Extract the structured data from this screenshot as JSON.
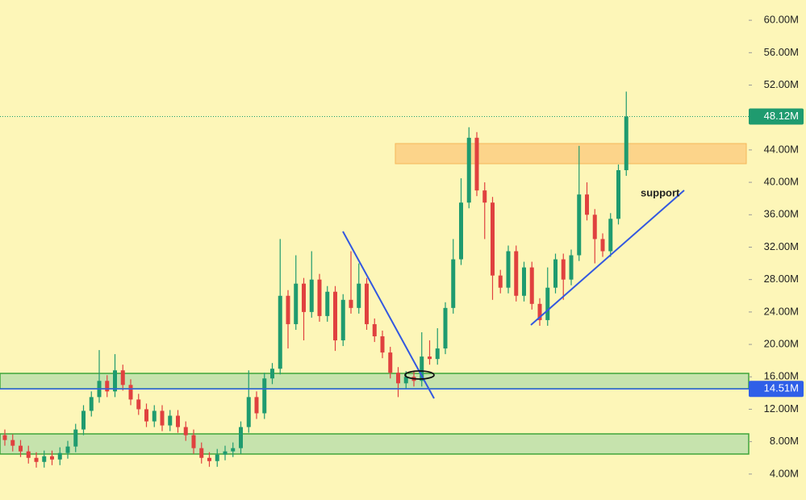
{
  "chart_data": {
    "type": "candlestick",
    "annotations": [
      "support"
    ],
    "ylim": [
      0.8,
      62.5
    ],
    "yticks": [
      {
        "value": 4,
        "label": "4.00M"
      },
      {
        "value": 8,
        "label": "8.00M"
      },
      {
        "value": 12,
        "label": "12.00M"
      },
      {
        "value": 16,
        "label": "16.00M"
      },
      {
        "value": 20,
        "label": "20.00M"
      },
      {
        "value": 24,
        "label": "24.00M"
      },
      {
        "value": 28,
        "label": "28.00M"
      },
      {
        "value": 32,
        "label": "32.00M"
      },
      {
        "value": 36,
        "label": "36.00M"
      },
      {
        "value": 40,
        "label": "40.00M"
      },
      {
        "value": 44,
        "label": "44.00M"
      },
      {
        "value": 48,
        "label": "48.00M"
      },
      {
        "value": 52,
        "label": "52.00M"
      },
      {
        "value": 56,
        "label": "56.00M"
      },
      {
        "value": 60,
        "label": "60.00M"
      }
    ],
    "last_price": {
      "value": 48.12,
      "label": "48.12M",
      "color": "#1f9b6f"
    },
    "level": {
      "value": 14.51,
      "label": "14.51M",
      "color": "#2f5fe8"
    },
    "up_color": "#1f9b6f",
    "down_color": "#e0413f",
    "open": [
      8.8,
      8.2,
      7.5,
      6.8,
      6.0,
      5.5,
      6.2,
      5.8,
      6.6,
      7.4,
      9.5,
      11.8,
      13.5,
      15.5,
      14.2,
      16.8,
      15.0,
      13.2,
      12.0,
      10.5,
      11.8,
      10.0,
      11.2,
      9.8,
      8.8,
      7.2,
      6.0,
      5.6,
      6.4,
      6.8,
      7.2,
      9.8,
      13.5,
      11.5,
      15.8,
      17.0,
      26.0,
      22.5,
      27.5,
      24.0,
      28.0,
      23.5,
      26.5,
      20.5,
      25.5,
      24.5,
      27.5,
      22.5,
      21.0,
      19.0,
      16.5,
      15.2,
      16.0,
      15.5,
      18.5,
      18.2,
      19.5,
      24.5,
      30.5,
      37.5,
      45.5,
      39.0,
      37.5,
      28.5,
      27.0,
      31.5,
      26.0,
      29.5,
      25.0,
      23.0,
      27.0,
      30.5,
      28.0,
      31.0,
      38.5,
      36.0,
      33.0,
      31.5,
      35.5,
      41.5
    ],
    "high": [
      9.5,
      8.9,
      8.2,
      7.5,
      6.7,
      6.9,
      6.9,
      7.3,
      8.1,
      10.2,
      12.5,
      14.2,
      19.3,
      16.2,
      18.8,
      17.5,
      15.7,
      13.9,
      12.7,
      12.5,
      12.5,
      11.9,
      11.9,
      10.5,
      9.5,
      7.9,
      6.7,
      7.1,
      7.5,
      7.9,
      10.5,
      16.8,
      14.2,
      16.5,
      17.7,
      33.0,
      26.7,
      31.0,
      28.2,
      31.5,
      28.7,
      27.2,
      27.2,
      26.2,
      31.5,
      30.0,
      28.2,
      23.2,
      21.7,
      19.7,
      17.2,
      16.7,
      16.7,
      21.5,
      20.5,
      22.0,
      25.2,
      33.0,
      40.5,
      46.8,
      46.2,
      40.0,
      38.2,
      29.2,
      32.2,
      32.2,
      30.2,
      30.2,
      25.7,
      29.5,
      31.2,
      31.2,
      31.7,
      44.5,
      40.0,
      36.7,
      33.7,
      36.2,
      42.2,
      51.2
    ],
    "low": [
      7.5,
      6.8,
      6.1,
      5.3,
      4.8,
      4.8,
      5.1,
      5.1,
      5.9,
      6.7,
      8.8,
      11.1,
      12.8,
      13.5,
      13.5,
      14.3,
      12.5,
      11.3,
      9.8,
      9.8,
      9.3,
      9.3,
      9.1,
      8.1,
      6.5,
      5.3,
      4.9,
      4.9,
      5.7,
      6.1,
      6.5,
      9.1,
      10.8,
      10.8,
      15.1,
      16.3,
      19.5,
      21.8,
      20.5,
      23.3,
      22.8,
      22.8,
      19.2,
      19.8,
      23.8,
      23.8,
      21.8,
      20.3,
      18.3,
      15.8,
      13.5,
      14.5,
      14.8,
      14.8,
      17.5,
      17.5,
      18.8,
      23.8,
      29.8,
      36.8,
      38.3,
      33.0,
      25.5,
      26.3,
      26.3,
      25.3,
      25.3,
      24.3,
      22.3,
      22.3,
      26.3,
      25.5,
      27.3,
      30.3,
      35.3,
      30.0,
      30.8,
      30.8,
      34.8,
      40.8
    ],
    "close": [
      8.2,
      7.5,
      6.8,
      6.0,
      5.5,
      6.2,
      5.8,
      6.6,
      7.4,
      9.5,
      11.8,
      13.5,
      15.5,
      14.2,
      16.8,
      15.0,
      13.2,
      12.0,
      10.5,
      11.8,
      10.0,
      11.2,
      9.8,
      8.8,
      7.2,
      6.0,
      5.6,
      6.4,
      6.8,
      7.2,
      9.8,
      13.5,
      11.5,
      15.8,
      17.0,
      26.0,
      22.5,
      27.5,
      24.0,
      28.0,
      23.5,
      26.5,
      20.5,
      25.5,
      24.5,
      27.5,
      22.5,
      21.0,
      19.0,
      16.5,
      15.2,
      16.0,
      15.5,
      18.5,
      18.2,
      19.5,
      24.5,
      30.5,
      37.5,
      45.5,
      39.0,
      37.5,
      28.5,
      27.0,
      31.5,
      26.0,
      29.5,
      25.0,
      23.0,
      27.0,
      30.5,
      28.0,
      31.0,
      38.5,
      36.0,
      33.0,
      31.5,
      35.5,
      41.5,
      48.12
    ]
  }
}
